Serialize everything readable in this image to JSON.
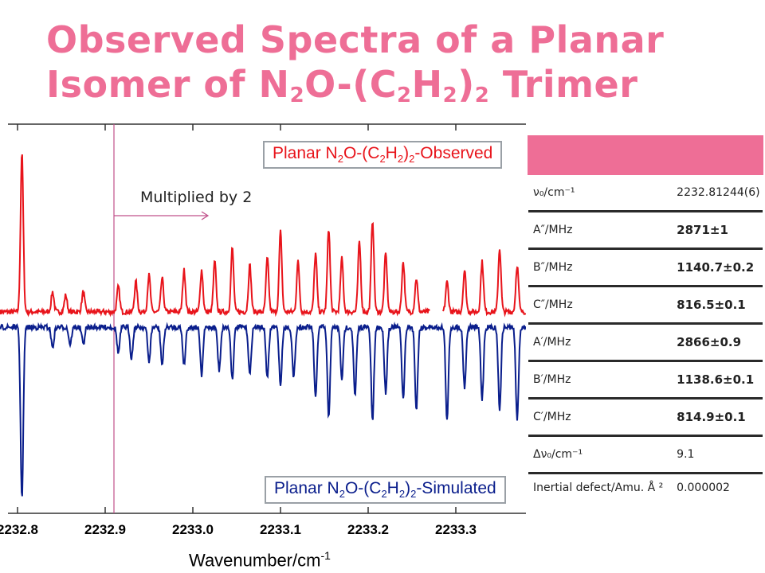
{
  "slide": {
    "title_line1": "Observed Spectra of a Planar",
    "title_line2_parts": [
      "Isomer of N",
      "2",
      "O-(C",
      "2",
      "H",
      "2",
      ")",
      "2",
      " Trimer"
    ]
  },
  "annotation": {
    "multiplied_label": "Multiplied by 2"
  },
  "chart_data": {
    "type": "line",
    "xlabel": "Wavenumber/cm",
    "xlabel_sup": "-1",
    "xlim": [
      2232.78,
      2233.38
    ],
    "x_ticks": [
      2232.8,
      2232.9,
      2233.0,
      2233.1,
      2233.2,
      2233.3
    ],
    "x_tick_labels": [
      "2232.8",
      "2232.9",
      "2233.0",
      "2233.1",
      "2233.2",
      "2233.3"
    ],
    "marker_line_x": 2232.91,
    "series": [
      {
        "name_parts": [
          "Planar N",
          "2",
          "O-(C",
          "2",
          "H",
          "2",
          ")",
          "2",
          "-Observed"
        ],
        "color": "#e8141b",
        "peaks": [
          [
            2232.805,
            0.95
          ],
          [
            2232.84,
            0.12
          ],
          [
            2232.855,
            0.1
          ],
          [
            2232.875,
            0.12
          ],
          [
            2232.915,
            0.15
          ],
          [
            2232.935,
            0.18
          ],
          [
            2232.95,
            0.22
          ],
          [
            2232.965,
            0.2
          ],
          [
            2232.99,
            0.25
          ],
          [
            2233.01,
            0.25
          ],
          [
            2233.025,
            0.3
          ],
          [
            2233.045,
            0.38
          ],
          [
            2233.065,
            0.28
          ],
          [
            2233.085,
            0.32
          ],
          [
            2233.1,
            0.48
          ],
          [
            2233.12,
            0.3
          ],
          [
            2233.14,
            0.35
          ],
          [
            2233.155,
            0.5
          ],
          [
            2233.17,
            0.32
          ],
          [
            2233.19,
            0.42
          ],
          [
            2233.205,
            0.55
          ],
          [
            2233.22,
            0.35
          ],
          [
            2233.24,
            0.3
          ],
          [
            2233.255,
            0.2
          ],
          [
            2233.29,
            0.18
          ],
          [
            2233.31,
            0.25
          ],
          [
            2233.33,
            0.3
          ],
          [
            2233.35,
            0.38
          ],
          [
            2233.37,
            0.28
          ]
        ],
        "gaps": [
          [
            2233.27,
            2233.285
          ]
        ]
      },
      {
        "name_parts": [
          "Planar N",
          "2",
          "O-(C",
          "2",
          "H",
          "2",
          ")",
          "2",
          "-Simulated"
        ],
        "color": "#0a1e8c",
        "peaks": [
          [
            2232.805,
            1.0
          ],
          [
            2232.84,
            0.12
          ],
          [
            2232.86,
            0.1
          ],
          [
            2232.875,
            0.1
          ],
          [
            2232.915,
            0.15
          ],
          [
            2232.93,
            0.18
          ],
          [
            2232.95,
            0.2
          ],
          [
            2232.965,
            0.22
          ],
          [
            2232.99,
            0.22
          ],
          [
            2233.01,
            0.28
          ],
          [
            2233.03,
            0.25
          ],
          [
            2233.045,
            0.3
          ],
          [
            2233.065,
            0.28
          ],
          [
            2233.085,
            0.3
          ],
          [
            2233.1,
            0.34
          ],
          [
            2233.115,
            0.3
          ],
          [
            2233.14,
            0.42
          ],
          [
            2233.155,
            0.52
          ],
          [
            2233.17,
            0.3
          ],
          [
            2233.185,
            0.4
          ],
          [
            2233.205,
            0.55
          ],
          [
            2233.22,
            0.38
          ],
          [
            2233.24,
            0.42
          ],
          [
            2233.255,
            0.48
          ],
          [
            2233.29,
            0.55
          ],
          [
            2233.31,
            0.35
          ],
          [
            2233.33,
            0.42
          ],
          [
            2233.35,
            0.48
          ],
          [
            2233.37,
            0.55
          ]
        ]
      }
    ]
  },
  "table": {
    "rows": [
      {
        "label": "ν₀/cm⁻¹",
        "value": "2232.81244(6)",
        "bold": false
      },
      {
        "label": "A″/MHz",
        "value": "2871±1",
        "bold": true
      },
      {
        "label": "B″/MHz",
        "value": "1140.7±0.2",
        "bold": true
      },
      {
        "label": "C″/MHz",
        "value": "816.5±0.1",
        "bold": true
      },
      {
        "label": "A′/MHz",
        "value": "2866±0.9",
        "bold": true
      },
      {
        "label": "B′/MHz",
        "value": "1138.6±0.1",
        "bold": true
      },
      {
        "label": "C′/MHz",
        "value": "814.9±0.1",
        "bold": true
      },
      {
        "label": "Δν₀/cm⁻¹",
        "value": "9.1",
        "bold": false
      },
      {
        "label": "Inertial defect/Amu. Å ²",
        "value": "0.000002",
        "bold": false
      }
    ]
  }
}
